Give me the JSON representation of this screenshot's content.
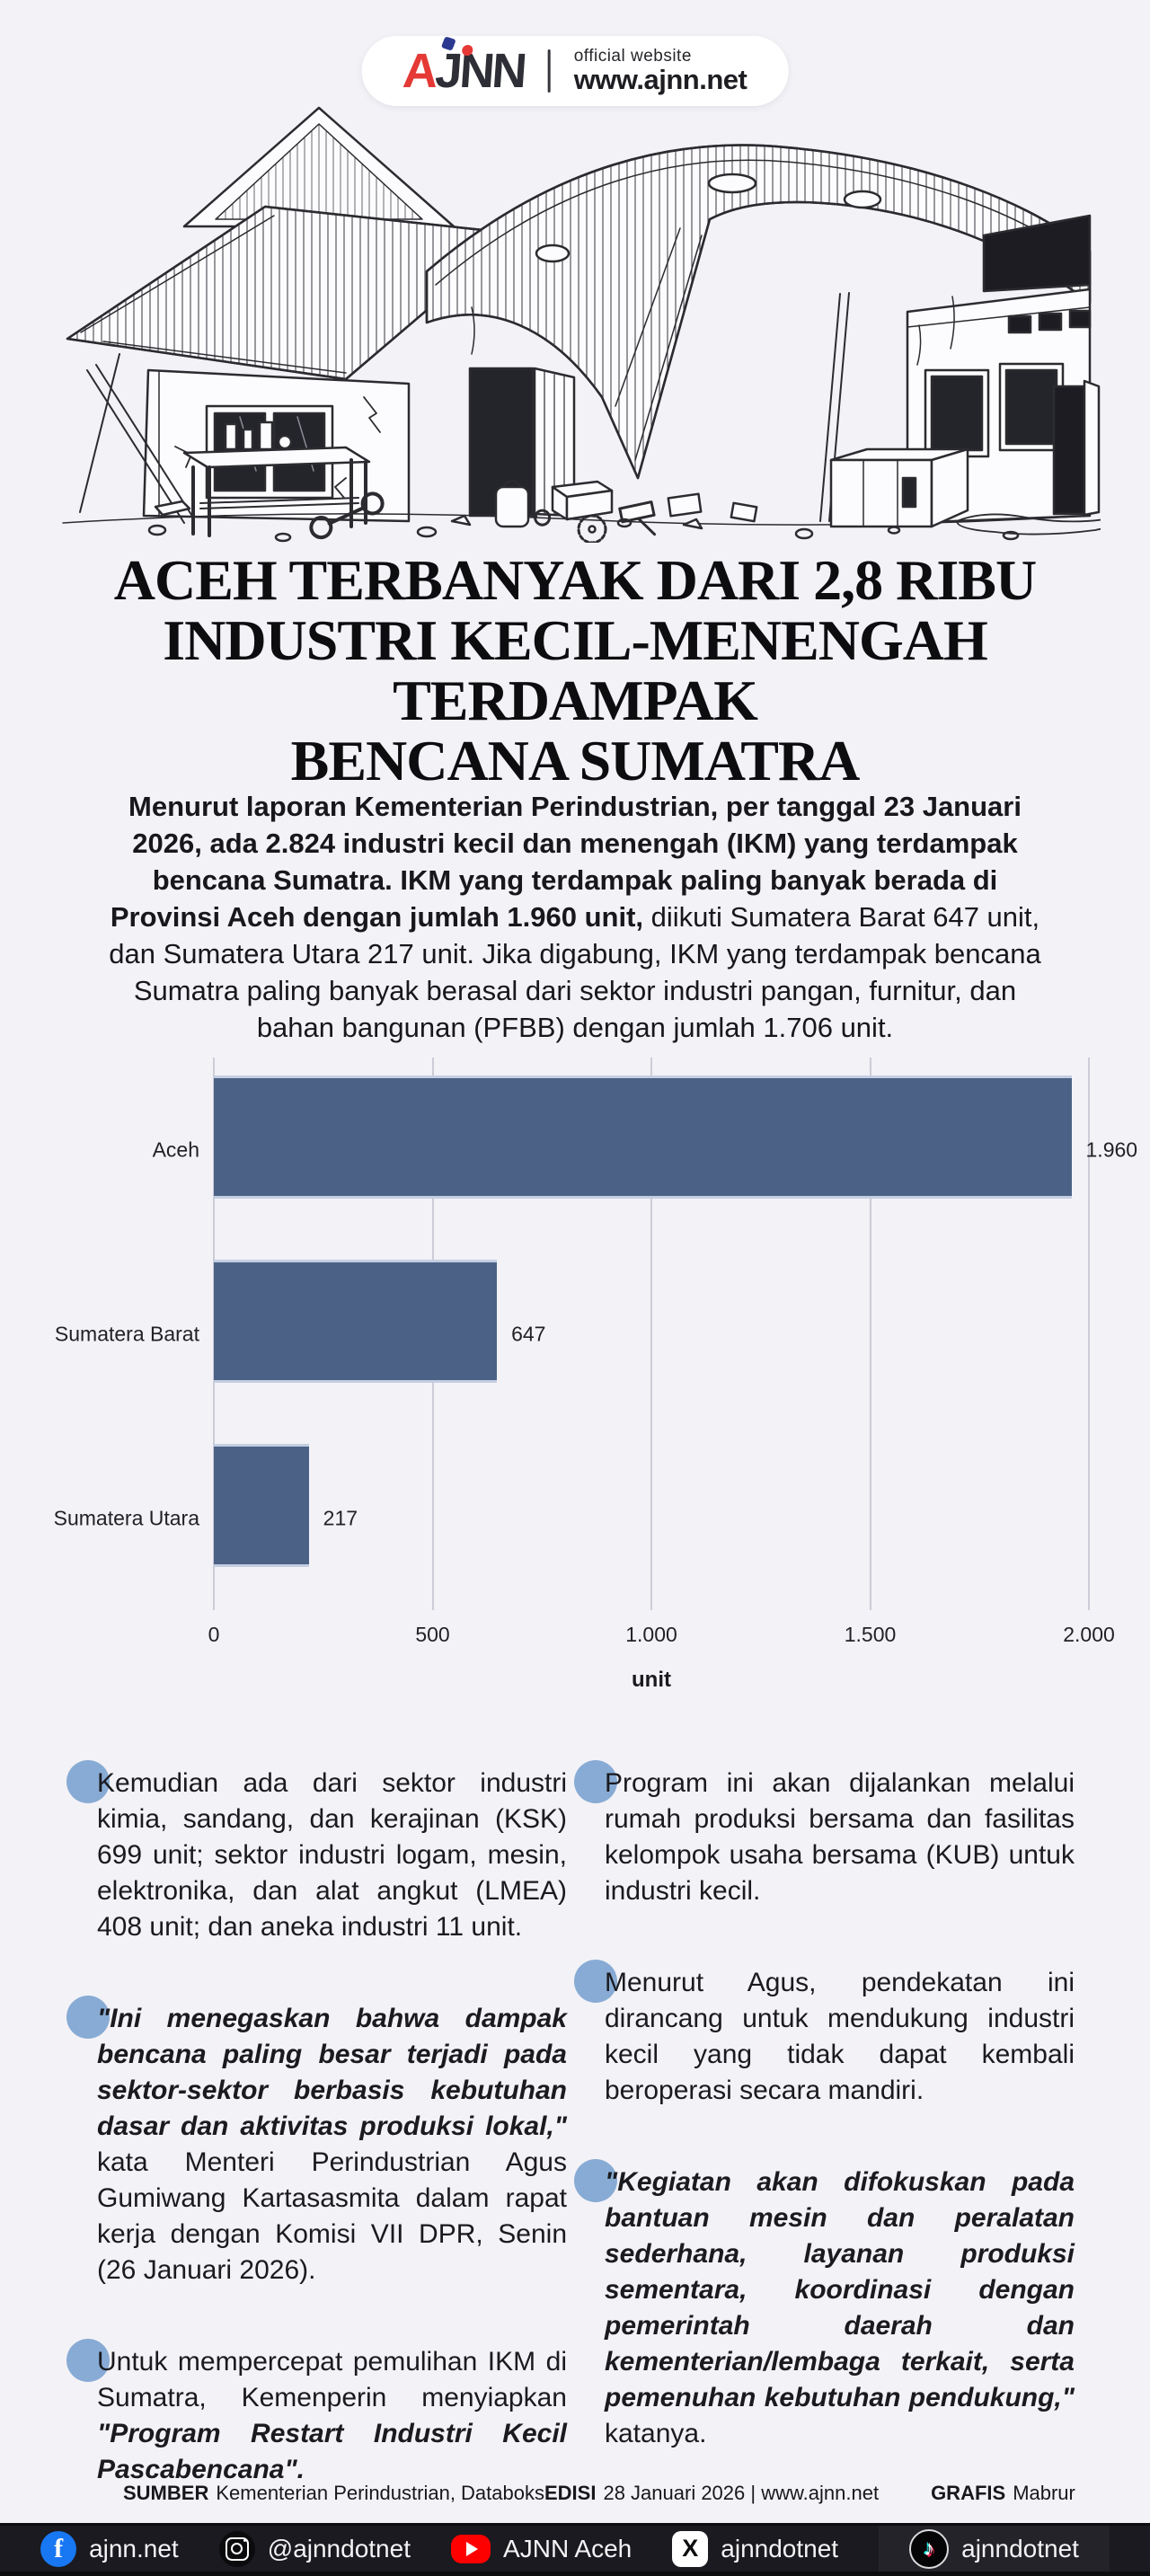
{
  "header": {
    "logo_text": "AJNN",
    "tagline": "official website",
    "site": "www.ajnn.net"
  },
  "title": {
    "line1": "ACEH TERBANYAK DARI 2,8 RIBU",
    "line2": "INDUSTRI KECIL-MENENGAH TERDAMPAK",
    "line3": "BENCANA SUMATRA"
  },
  "intro": {
    "segments": [
      {
        "text": "Menurut laporan Kementerian Perindustrian, per tanggal 23 Januari 2026, ada 2.824 industri kecil dan menengah (IKM) yang terdampak bencana Sumatra. IKM yang terdampak paling banyak berada di Provinsi Aceh dengan jumlah 1.960 unit, ",
        "bold": true
      },
      {
        "text": "diikuti Sumatera Barat 647 unit, dan Sumatera Utara 217 unit. Jika digabung, IKM yang terdampak bencana Sumatra paling banyak berasal dari sektor industri pangan, furnitur, dan bahan bangunan (PFBB) dengan jumlah 1.706 unit."
      }
    ]
  },
  "chart_data": {
    "type": "bar",
    "orientation": "horizontal",
    "categories": [
      "Aceh",
      "Sumatera Barat",
      "Sumatera Utara"
    ],
    "values": [
      1960,
      647,
      217
    ],
    "value_labels": [
      "1.960",
      "647",
      "217"
    ],
    "title": "",
    "xlabel": "unit",
    "ylabel": "",
    "xlim": [
      0,
      2000
    ],
    "x_ticks": [
      {
        "value": 0,
        "label": "0"
      },
      {
        "value": 500,
        "label": "500"
      },
      {
        "value": 1000,
        "label": "1.000"
      },
      {
        "value": 1500,
        "label": "1.500"
      },
      {
        "value": 2000,
        "label": "2.000"
      }
    ],
    "grid": true,
    "legend": false,
    "bar_color": "#4b6286"
  },
  "columns": {
    "left": [
      {
        "segments": [
          {
            "text": "Kemudian ada dari sektor industri kimia, sandang, dan kerajinan (KSK) 699 unit; sektor industri logam, mesin, elektronika, dan alat angkut (LMEA) 408 unit; dan aneka industri 11 unit."
          }
        ]
      },
      {
        "segments": [
          {
            "text": "\"Ini menegaskan bahwa dampak bencana paling besar terjadi pada sektor-sektor berbasis kebutuhan dasar dan aktivitas produksi lokal,\" ",
            "bold": true,
            "italic": true
          },
          {
            "text": "kata Menteri Perindustrian Agus Gumiwang Kartasasmita dalam rapat kerja dengan Komisi VII DPR, Senin (26 Januari 2026)."
          }
        ]
      },
      {
        "segments": [
          {
            "text": "Untuk mempercepat pemulihan IKM di Sumatra, Kemenperin menyiapkan "
          },
          {
            "text": "\"Program Restart Industri Kecil Pascabencana\".",
            "bold": true,
            "italic": true
          }
        ]
      }
    ],
    "right": [
      {
        "segments": [
          {
            "text": "Program ini akan dijalankan melalui rumah produksi bersama dan fasilitas kelompok usaha bersama (KUB) untuk industri kecil."
          }
        ]
      },
      {
        "segments": [
          {
            "text": "Menurut Agus, pendekatan ini dirancang untuk mendukung industri kecil yang tidak dapat kembali beroperasi secara mandiri."
          }
        ]
      },
      {
        "segments": [
          {
            "text": "\"Kegiatan akan difokuskan pada bantuan mesin dan peralatan sederhana, layanan produksi sementara, koordinasi dengan pemerintah daerah dan kementerian/lembaga terkait, serta pemenuhan kebutuhan pendukung,\" ",
            "bold": true,
            "italic": true
          },
          {
            "text": "katanya."
          }
        ]
      }
    ]
  },
  "footer": {
    "sumber_label": "SUMBER",
    "sumber_value": "Kementerian Perindustrian, Databoks",
    "edisi_label": "EDISI",
    "edisi_value": "28 Januari 2026 | www.ajnn.net",
    "grafis_label": "GRAFIS",
    "grafis_value": "Mabrur"
  },
  "social": {
    "items": [
      {
        "icon": "facebook-icon",
        "label": "ajnn.net"
      },
      {
        "icon": "instagram-icon",
        "label": "@ajnndotnet"
      },
      {
        "icon": "youtube-icon",
        "label": "AJNN Aceh"
      },
      {
        "icon": "x-icon",
        "label": "ajnndotnet"
      },
      {
        "icon": "tiktok-icon",
        "label": "ajnndotnet"
      }
    ]
  },
  "colors": {
    "page_bg": "#f3f2f7",
    "bar": "#4b6286",
    "bullet": "#87abd4",
    "bottom_bar": "#1a1a20",
    "facebook_blue": "#1877f2",
    "youtube_red": "#ff0000",
    "tiktok_cyan": "#25f4ee",
    "tiktok_pink": "#fe2c55",
    "logo_red": "#e53935",
    "logo_blue": "#2b3990"
  }
}
